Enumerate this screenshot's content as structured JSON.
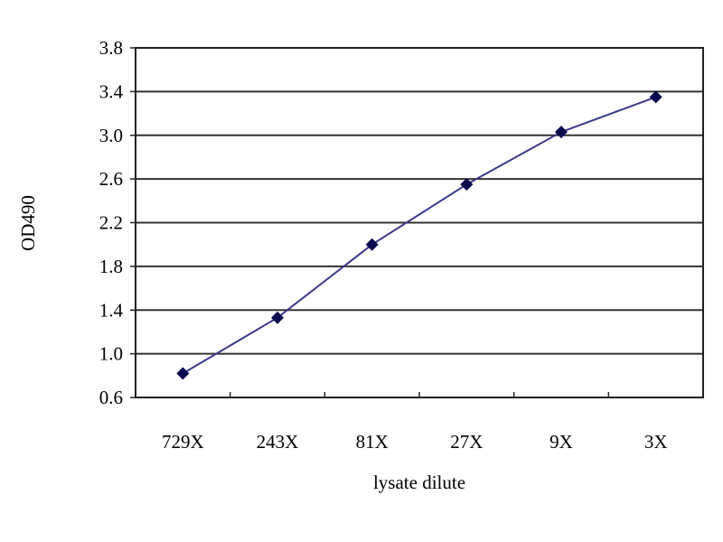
{
  "chart_data": {
    "type": "line",
    "title": "",
    "xlabel": "lysate dilute",
    "ylabel": "OD490",
    "categories": [
      "729X",
      "243X",
      "81X",
      "27X",
      "9X",
      "3X"
    ],
    "series": [
      {
        "values": [
          0.82,
          1.33,
          2.0,
          2.55,
          3.03,
          3.35
        ]
      }
    ],
    "ylim": [
      0.6,
      3.8
    ],
    "yticks": [
      "0.6",
      "1.0",
      "1.4",
      "1.8",
      "2.2",
      "2.6",
      "3.0",
      "3.4",
      "3.8"
    ],
    "grid": "horizontal",
    "legend": "none",
    "colors": {
      "line": "#3a3a8c",
      "marker": "#0a0a50",
      "grid": "#333333"
    }
  }
}
